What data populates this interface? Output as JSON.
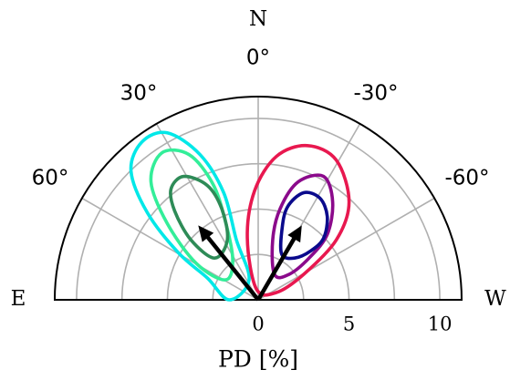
{
  "chart_data": {
    "type": "polar-contour",
    "span": "half-disk",
    "cardinal_labels": {
      "north": "N",
      "east": "E",
      "west": "W"
    },
    "angle_ticks": [
      {
        "deg": 0,
        "label": "0°"
      },
      {
        "deg": 30,
        "label": "30°"
      },
      {
        "deg": -30,
        "label": "-30°"
      },
      {
        "deg": 60,
        "label": "60°"
      },
      {
        "deg": -60,
        "label": "-60°"
      }
    ],
    "radial_ticks": [
      {
        "value": 0,
        "label": "0"
      },
      {
        "value": 5,
        "label": "5"
      },
      {
        "value": 10,
        "label": "10"
      }
    ],
    "radial_gridlines": [
      2.5,
      5,
      7.5,
      10
    ],
    "radial_max": 11.2,
    "angular_gridlines": [
      -60,
      -30,
      0,
      30,
      60
    ],
    "xlabel": "PD [%]",
    "grid": true,
    "contours": [
      {
        "color": "#00e8e8",
        "points": [
          [
            -1.6,
            0.0
          ],
          [
            -2.8,
            1.2
          ],
          [
            -4.4,
            2.6
          ],
          [
            -6.1,
            4.8
          ],
          [
            -7.0,
            7.1
          ],
          [
            -6.4,
            8.7
          ],
          [
            -5.0,
            9.2
          ],
          [
            -3.2,
            8.0
          ],
          [
            -1.9,
            5.9
          ],
          [
            -1.2,
            3.3
          ],
          [
            -0.5,
            1.1
          ]
        ]
      },
      {
        "color": "#33ee99",
        "points": [
          [
            -1.8,
            1.1
          ],
          [
            -3.4,
            2.0
          ],
          [
            -5.0,
            4.2
          ],
          [
            -5.9,
            6.5
          ],
          [
            -5.3,
            8.1
          ],
          [
            -3.8,
            8.0
          ],
          [
            -2.5,
            6.4
          ],
          [
            -1.8,
            4.3
          ],
          [
            -1.4,
            2.2
          ]
        ]
      },
      {
        "color": "#2e8b57",
        "points": [
          [
            -2.4,
            2.3
          ],
          [
            -3.7,
            3.3
          ],
          [
            -4.6,
            4.9
          ],
          [
            -4.8,
            6.1
          ],
          [
            -4.1,
            6.8
          ],
          [
            -2.8,
            6.3
          ],
          [
            -2.0,
            5.0
          ],
          [
            -1.7,
            3.3
          ]
        ]
      },
      {
        "color": "#e8184f",
        "points": [
          [
            -0.1,
            0.6
          ],
          [
            -0.6,
            3.4
          ],
          [
            -0.2,
            6.0
          ],
          [
            1.0,
            7.9
          ],
          [
            2.7,
            8.5
          ],
          [
            4.3,
            7.7
          ],
          [
            5.0,
            5.4
          ],
          [
            4.3,
            3.3
          ],
          [
            2.5,
            1.4
          ],
          [
            1.0,
            0.4
          ]
        ]
      },
      {
        "color": "#8b0a8b",
        "points": [
          [
            0.9,
            1.4
          ],
          [
            0.8,
            3.3
          ],
          [
            1.2,
            5.0
          ],
          [
            2.2,
            6.5
          ],
          [
            3.6,
            6.8
          ],
          [
            4.1,
            5.4
          ],
          [
            3.8,
            3.6
          ],
          [
            2.8,
            2.3
          ],
          [
            1.7,
            1.4
          ]
        ]
      },
      {
        "color": "#0a0a8c",
        "points": [
          [
            1.3,
            2.5
          ],
          [
            1.3,
            3.8
          ],
          [
            1.6,
            5.1
          ],
          [
            2.5,
            5.9
          ],
          [
            3.4,
            5.6
          ],
          [
            3.8,
            4.6
          ],
          [
            3.6,
            3.4
          ],
          [
            2.9,
            2.7
          ],
          [
            2.0,
            2.3
          ]
        ]
      }
    ],
    "arrows": [
      {
        "dx": -3.3,
        "dy": 4.1
      },
      {
        "dx": 2.4,
        "dy": 4.1
      }
    ]
  }
}
